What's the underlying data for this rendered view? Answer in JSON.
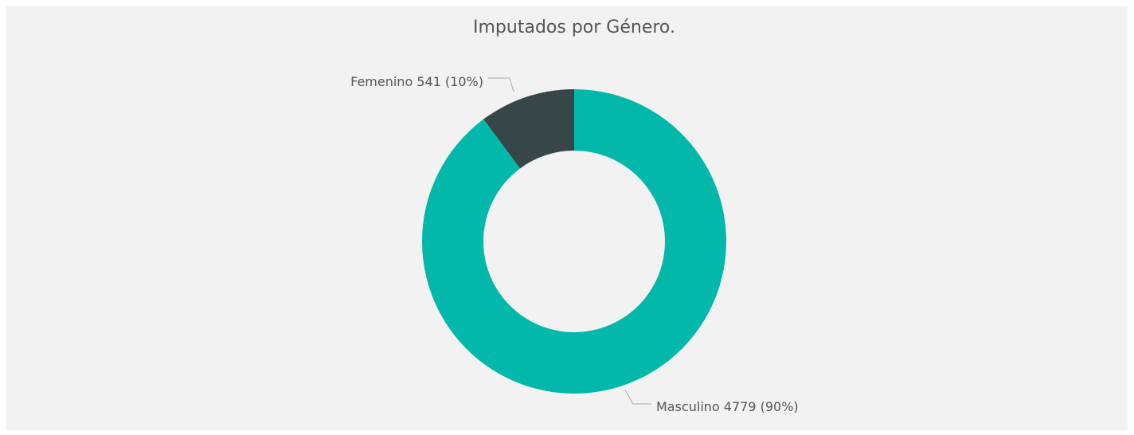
{
  "chart_data": {
    "type": "donut",
    "title": "Imputados por Género.",
    "categories": [
      "Femenino",
      "Masculino"
    ],
    "values": [
      541,
      4779
    ],
    "value_labels": [
      "541 (10%)",
      "4779 (90%)"
    ],
    "colors": [
      "#374649",
      "#01B8AA"
    ]
  }
}
